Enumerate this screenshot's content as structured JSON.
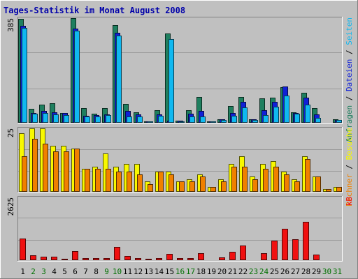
{
  "chart_data": {
    "type": "bar",
    "title": "Tages-Statistik im Monat August 2008",
    "categories": [
      "1",
      "2",
      "3",
      "4",
      "5",
      "6",
      "7",
      "8",
      "9",
      "10",
      "11",
      "12",
      "13",
      "14",
      "15",
      "16",
      "17",
      "18",
      "19",
      "20",
      "21",
      "22",
      "23",
      "24",
      "25",
      "26",
      "27",
      "28",
      "29",
      "30",
      "31"
    ],
    "weekend_days": [
      "2",
      "3",
      "9",
      "10",
      "16",
      "17",
      "23",
      "24",
      "30",
      "31"
    ],
    "colors": {
      "anfragen": "#1f7f5f",
      "dateien": "#1020d8",
      "seiten": "#10b8f0",
      "besuche": "#f8f800",
      "rechner": "#f08000",
      "kb": "#f01010",
      "title": "#0000aa",
      "weekday_label": "#000000",
      "weekend_label": "#007000"
    },
    "panels": [
      {
        "id": "top",
        "ymax_label": "385",
        "ymax": 385,
        "right_labels": [
          {
            "text": "Anfragen",
            "color": "#1f7f5f"
          },
          {
            "text": "Dateien",
            "color": "#1020d8"
          },
          {
            "text": "Seiten",
            "color": "#10b8f0"
          }
        ],
        "series": [
          {
            "name": "Anfragen",
            "values": [
              382,
              52,
              68,
              71,
              37,
              385,
              54,
              34,
              54,
              360,
              69,
              38,
              6,
              47,
              329,
              8,
              45,
              94,
              5,
              13,
              62,
              96,
              14,
              90,
              93,
              132,
              38,
              111,
              55,
              2,
              12
            ]
          },
          {
            "name": "Dateien",
            "values": [
              357,
              35,
              43,
              38,
              35,
              346,
              26,
              28,
              30,
              332,
              44,
              30,
              5,
              30,
              8,
              7,
              33,
              44,
              5,
              12,
              35,
              77,
              12,
              47,
              78,
              133,
              36,
              93,
              30,
              2,
              11
            ]
          },
          {
            "name": "Seiten",
            "values": [
              350,
              34,
              35,
              31,
              29,
              340,
              24,
              24,
              29,
              321,
              24,
              24,
              4,
              25,
              309,
              6,
              22,
              24,
              4,
              10,
              26,
              57,
              9,
              29,
              58,
              100,
              34,
              67,
              18,
              2,
              10
            ]
          }
        ]
      },
      {
        "id": "middle",
        "ymax_label": "25",
        "ymax": 25,
        "right_labels": [
          {
            "text": "Rechner",
            "color": "#f08000"
          },
          {
            "text": "Besuche",
            "color": "#f8f800"
          }
        ],
        "series": [
          {
            "name": "Besuche",
            "values": [
              23,
              25,
              25,
              18,
              18,
              17,
              9,
              10,
              15,
              10,
              11,
              11,
              4,
              8,
              8,
              4,
              5,
              7,
              2,
              5,
              11,
              14,
              6,
              11,
              12,
              8,
              5,
              14,
              6,
              1,
              2
            ]
          },
          {
            "name": "Rechner",
            "values": [
              14,
              21,
              19,
              16,
              16,
              17,
              9,
              9,
              9,
              8,
              8,
              7,
              3,
              8,
              7,
              4,
              4,
              6,
              2,
              4,
              10,
              10,
              5,
              9,
              10,
              7,
              4,
              13,
              6,
              1,
              2
            ]
          }
        ]
      },
      {
        "id": "bottom",
        "ymax_label": "2625",
        "ymax": 2625,
        "right_labels": [
          {
            "text": "kB",
            "color": "#f01010"
          }
        ],
        "series": [
          {
            "name": "kB",
            "values": [
              890,
              200,
              160,
              145,
              60,
              380,
              80,
              80,
              80,
              560,
              170,
              100,
              50,
              100,
              260,
              80,
              100,
              290,
              10,
              130,
              350,
              610,
              40,
              280,
              830,
              1320,
              880,
              1600,
              220,
              15,
              10
            ]
          }
        ]
      }
    ]
  }
}
